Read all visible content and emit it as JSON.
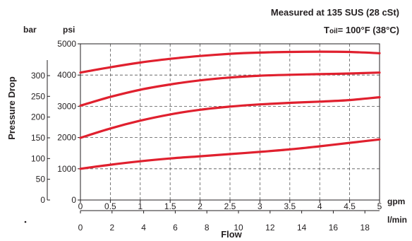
{
  "chart_data": {
    "type": "line",
    "title_line1": "Measured at 135 SUS  (28 cSt)",
    "title_line2_prefix": "T",
    "title_line2_sub": "oil",
    "title_line2_suffix": "= 100°F  (38°C)",
    "ylabel": "Pressure Drop",
    "xlabel": "Flow",
    "y_unit_bar": "bar",
    "y_unit_psi": "psi",
    "x_unit_gpm": "gpm",
    "x_unit_lmin": "l/min",
    "psi_ticks": [
      "0",
      "1000",
      "2000",
      "3000",
      "4000",
      "5000"
    ],
    "bar_ticks": [
      "0",
      "50",
      "100",
      "150",
      "200",
      "250",
      "300"
    ],
    "gpm_ticks": [
      "0",
      "0.5",
      "1",
      "1.5",
      "2",
      "2.5",
      "3",
      "3.5",
      "4",
      "4.5",
      "5"
    ],
    "lmin_ticks": [
      "0",
      "2",
      "4",
      "6",
      "8",
      "10",
      "12",
      "14",
      "16",
      "18"
    ],
    "xlim_gpm": [
      0,
      5
    ],
    "ylim_psi": [
      0,
      5000
    ],
    "grid": true,
    "line_color": "#e0202e",
    "series": [
      {
        "x": [
          0,
          0.5,
          1,
          1.5,
          2,
          2.5,
          3,
          3.5,
          4,
          4.5,
          5
        ],
        "y": [
          1000,
          1130,
          1240,
          1330,
          1400,
          1470,
          1540,
          1620,
          1720,
          1830,
          1940
        ]
      },
      {
        "x": [
          0,
          0.5,
          1,
          1.5,
          2,
          2.5,
          3,
          3.5,
          4,
          4.5,
          5
        ],
        "y": [
          1990,
          2290,
          2540,
          2740,
          2890,
          2990,
          3060,
          3110,
          3150,
          3200,
          3290
        ]
      },
      {
        "x": [
          0,
          0.5,
          1,
          1.5,
          2,
          2.5,
          3,
          3.5,
          4,
          4.5,
          5
        ],
        "y": [
          3020,
          3300,
          3530,
          3700,
          3830,
          3920,
          3980,
          4010,
          4030,
          4050,
          4080
        ]
      },
      {
        "x": [
          0,
          0.5,
          1,
          1.5,
          2,
          2.5,
          3,
          3.5,
          4,
          4.5,
          5
        ],
        "y": [
          4080,
          4250,
          4400,
          4520,
          4610,
          4680,
          4720,
          4740,
          4750,
          4740,
          4700
        ]
      }
    ]
  }
}
